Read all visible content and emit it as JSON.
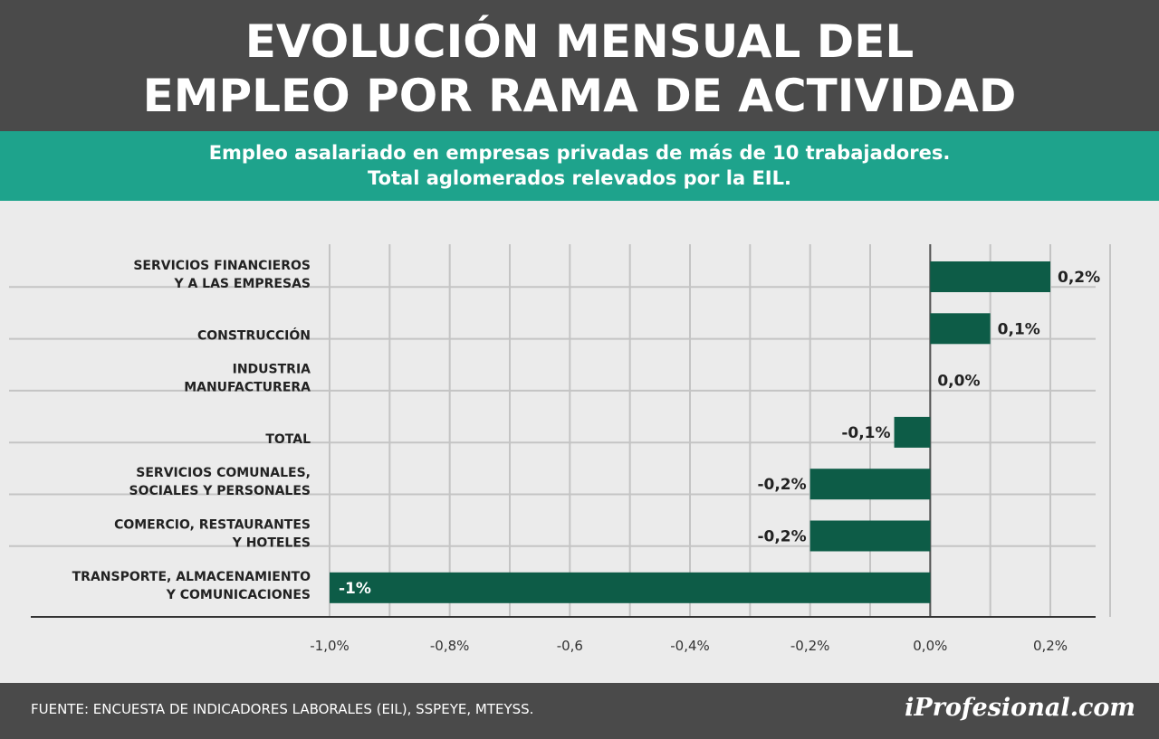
{
  "header": {
    "title_line1": "EVOLUCIÓN MENSUAL DEL",
    "title_line2": "EMPLEO POR RAMA DE ACTIVIDAD",
    "subtitle_line1": "Empleo asalariado en empresas privadas de más de 10 trabajadores.",
    "subtitle_line2": "Total aglomerados relevados por la EIL."
  },
  "chart_data": {
    "type": "bar",
    "orientation": "horizontal",
    "categories": [
      [
        "SERVICIOS FINANCIEROS",
        "Y A LAS EMPRESAS"
      ],
      [
        "CONSTRUCCIÓN"
      ],
      [
        "INDUSTRIA",
        "MANUFACTURERA"
      ],
      [
        "TOTAL"
      ],
      [
        "SERVICIOS COMUNALES,",
        "SOCIALES Y PERSONALES"
      ],
      [
        "COMERCIO, RESTAURANTES",
        "Y HOTELES"
      ],
      [
        "TRANSPORTE, ALMACENAMIENTO",
        "Y COMUNICACIONES"
      ]
    ],
    "values": [
      0.2,
      0.1,
      0.0,
      -0.06,
      -0.2,
      -0.2,
      -1.0
    ],
    "value_labels": [
      "0,2%",
      "0,1%",
      "0,0%",
      "-0,1%",
      "-0,2%",
      "-0,2%",
      "-1%"
    ],
    "xlim": [
      -1.0,
      0.2
    ],
    "x_ticks": [
      -1.0,
      -0.8,
      -0.6,
      -0.4,
      -0.2,
      0.0,
      0.2
    ],
    "x_tick_labels": [
      "-1,0%",
      "-0,8%",
      "-0,6",
      "-0,4%",
      "-0,2%",
      "0,0%",
      "0,2%"
    ],
    "grid": true,
    "bar_color": "#0d5c47"
  },
  "footer": {
    "source": "FUENTE: ENCUESTA DE INDICADORES LABORALES (EIL), SSPEYE, MTEYSS.",
    "logo": "iProfesional.com"
  }
}
